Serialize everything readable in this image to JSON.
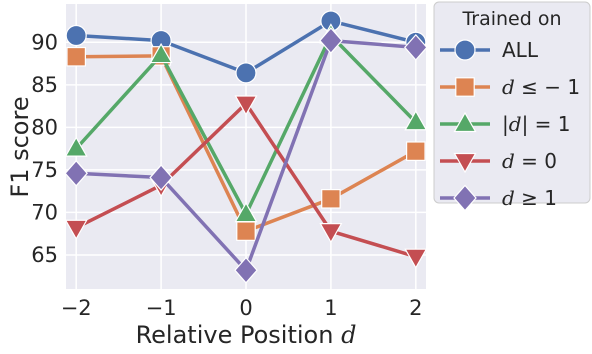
{
  "chart_data": {
    "type": "line",
    "title": "",
    "xlabel": "Relative Position",
    "xlabel_var": "d",
    "ylabel": "F1 score",
    "x": [
      -2,
      -1,
      0,
      1,
      2
    ],
    "x_tick_labels": [
      "−2",
      "−1",
      "0",
      "1",
      "2"
    ],
    "xlim": [
      -2.12,
      2.12
    ],
    "ylim": [
      61,
      94.5
    ],
    "yticks": [
      65,
      70,
      75,
      80,
      85,
      90
    ],
    "grid": true,
    "legend": {
      "title": "Trained on",
      "placement": "outside-right"
    },
    "series": [
      {
        "key": "all",
        "legend_label": "ALL",
        "color": "#4c72b0",
        "marker": "circle",
        "values": [
          90.8,
          90.2,
          86.4,
          92.5,
          90.0
        ]
      },
      {
        "key": "neg",
        "legend_label": "d ≤ − 1",
        "color": "#dd8452",
        "marker": "square",
        "values": [
          88.3,
          88.4,
          67.8,
          71.6,
          77.2
        ]
      },
      {
        "key": "abs1",
        "legend_label": "|d| = 1",
        "color": "#55a868",
        "marker": "triangle-up",
        "values": [
          77.5,
          88.5,
          69.8,
          90.8,
          80.6
        ]
      },
      {
        "key": "zero",
        "legend_label": "d = 0",
        "color": "#c44e52",
        "marker": "triangle-down",
        "values": [
          68.2,
          73.2,
          82.8,
          67.8,
          64.8
        ]
      },
      {
        "key": "pos",
        "legend_label": "d ≥ 1",
        "color": "#8172b3",
        "marker": "diamond",
        "values": [
          74.6,
          74.1,
          63.2,
          90.2,
          89.4
        ]
      }
    ]
  }
}
